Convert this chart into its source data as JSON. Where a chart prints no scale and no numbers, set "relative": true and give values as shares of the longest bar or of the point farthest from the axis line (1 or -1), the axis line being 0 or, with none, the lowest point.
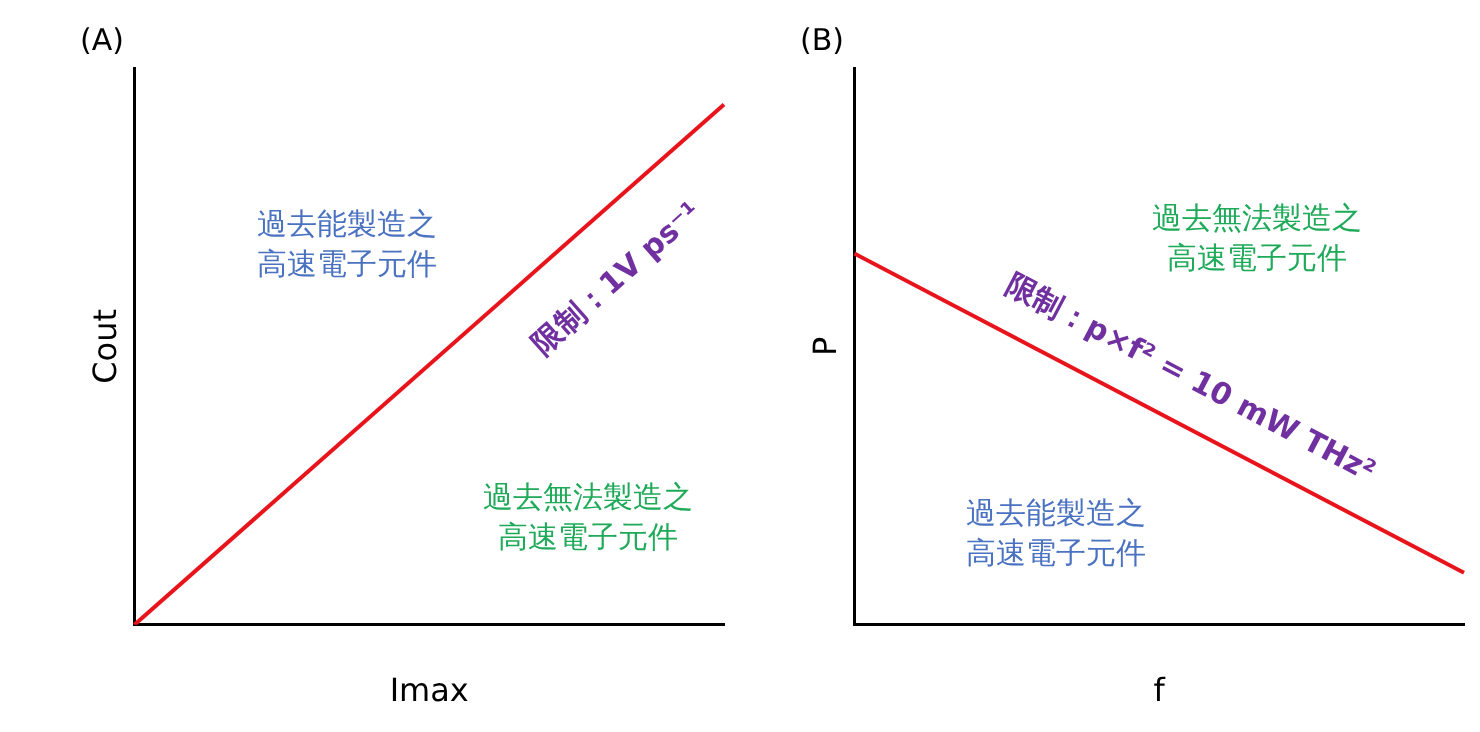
{
  "chart_data": [
    {
      "type": "line",
      "title": "(A)",
      "xlabel": "Imax",
      "ylabel": "Cout",
      "relative": true,
      "categories": [
        null,
        null
      ],
      "series": [
        {
          "color": "#e8141b",
          "values": [
            0,
            1
          ]
        }
      ],
      "annotations": [
        "過去能製造之高速電子元件",
        "限制：1V ps⁻¹",
        "過去無法製造之高速電子元件"
      ],
      "grid": false,
      "legend": false,
      "marker": "none",
      "line_style": "solid"
    },
    {
      "type": "line",
      "title": "(B)",
      "xlabel": "f",
      "ylabel": "P",
      "relative": true,
      "categories": [
        null,
        null
      ],
      "series": [
        {
          "color": "#e8141b",
          "values": [
            1,
            0.14
          ]
        }
      ],
      "annotations": [
        "過去無法製造之高速電子元件",
        "限制：p×f² = 10 mW THz²",
        "過去能製造之高速電子元件"
      ],
      "grid": false,
      "legend": false,
      "marker": "none",
      "line_style": "solid"
    }
  ]
}
